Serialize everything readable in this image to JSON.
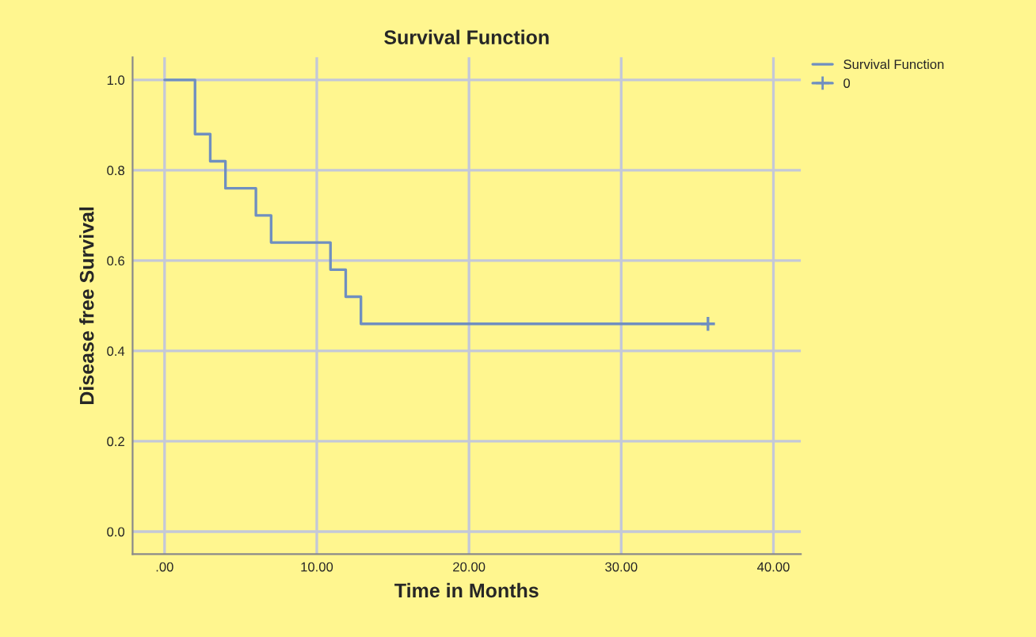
{
  "chart_data": {
    "type": "step",
    "title": "Survival Function",
    "xlabel": "Time in Months",
    "ylabel": "Disease free Survival",
    "series": [
      {
        "name": "Survival Function",
        "color": "#6f8fc0",
        "x": [
          0,
          2,
          3,
          4,
          6,
          7,
          10.9,
          11.9,
          12.9,
          35.7
        ],
        "values": [
          1.0,
          0.88,
          0.82,
          0.76,
          0.7,
          0.64,
          0.58,
          0.52,
          0.46,
          0.46
        ]
      },
      {
        "name": "0",
        "type": "scatter",
        "color": "#6f8fc0",
        "marker": "cross",
        "x": [
          35.7
        ],
        "values": [
          0.46
        ]
      }
    ],
    "xlim": [
      -2.1,
      41.8
    ],
    "ylim": [
      -0.05,
      1.05
    ],
    "xticks": [
      {
        "value": 0,
        "label": ".00"
      },
      {
        "value": 10,
        "label": "10.00"
      },
      {
        "value": 20,
        "label": "20.00"
      },
      {
        "value": 30,
        "label": "30.00"
      },
      {
        "value": 40,
        "label": "40.00"
      }
    ],
    "yticks": [
      {
        "value": 0,
        "label": "0.0"
      },
      {
        "value": 0.2,
        "label": "0.2"
      },
      {
        "value": 0.4,
        "label": "0.4"
      },
      {
        "value": 0.6,
        "label": "0.6"
      },
      {
        "value": 0.8,
        "label": "0.8"
      },
      {
        "value": 1.0,
        "label": "1.0"
      }
    ],
    "grid": true,
    "legend": "top right"
  }
}
